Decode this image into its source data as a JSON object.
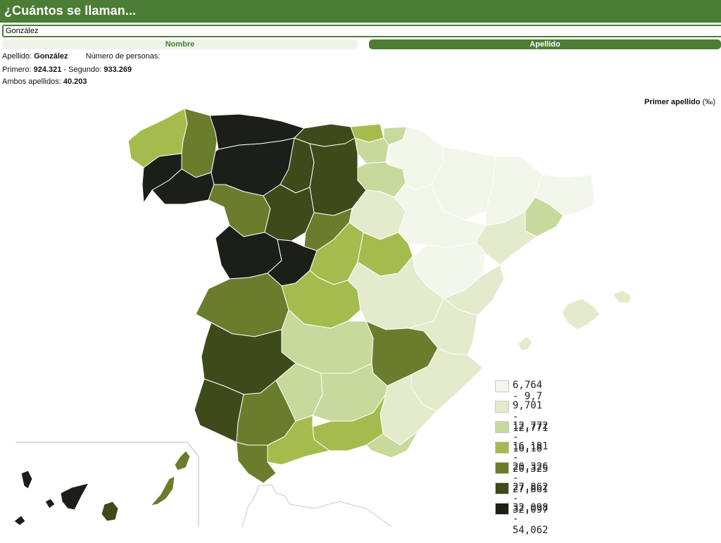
{
  "header": {
    "title": "¿Cuántos se llaman..."
  },
  "search": {
    "value": "González"
  },
  "tabs": {
    "nombre": "Nombre",
    "apellido": "Apellido"
  },
  "info": {
    "line1_label1": "Apellido:",
    "apellido_value": "González",
    "line1_label2": "Número de personas:",
    "primero_label": "Primero:",
    "primero_value": "924.321",
    "sep": "- Segundo:",
    "segundo_value": "933.269",
    "ambos_label": "Ambos apellidos:",
    "ambos_value": "40.203"
  },
  "map": {
    "title": "Primer apellido",
    "unit": "(‰)"
  },
  "legend": [
    {
      "label": "6,764 - 9,7",
      "color": "#f3f6ea"
    },
    {
      "label": "9,701 - 12,771",
      "color": "#e3ebcc"
    },
    {
      "label": "12,772 - 16,18",
      "color": "#c7d99b"
    },
    {
      "label": "16,181 - 20,325",
      "color": "#a4bc4d"
    },
    {
      "label": "20,326 - 27,861",
      "color": "#6a7d2c"
    },
    {
      "label": "27,862 - 32,097",
      "color": "#3d4a1a"
    },
    {
      "label": "32,098 - 54,062",
      "color": "#1c1e18"
    }
  ]
}
